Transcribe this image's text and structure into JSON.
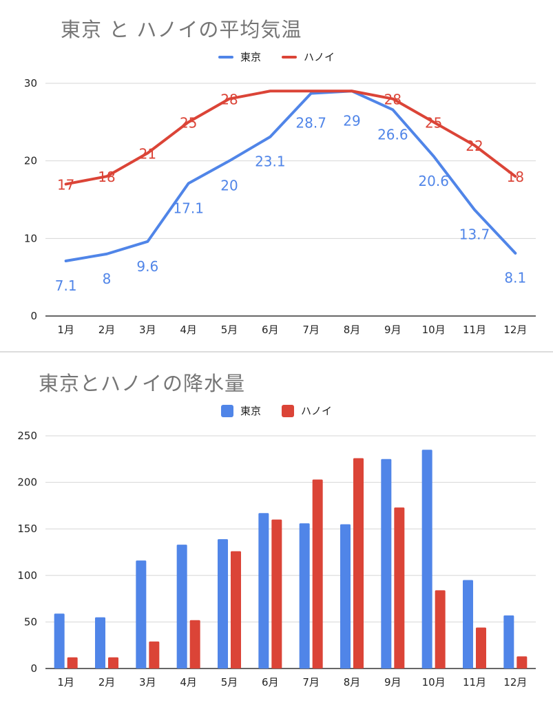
{
  "colors": {
    "tokyo": "#5085e8",
    "hanoi": "#db4437",
    "grid": "#d6d6d6",
    "axis": "#333333"
  },
  "chart_data": [
    {
      "type": "line",
      "title": "東京 と ハノイの平均気温",
      "categories": [
        "1月",
        "2月",
        "3月",
        "4月",
        "5月",
        "6月",
        "7月",
        "8月",
        "9月",
        "10月",
        "11月",
        "12月"
      ],
      "series": [
        {
          "name": "東京",
          "values": [
            7.1,
            8,
            9.6,
            17.1,
            20,
            23.1,
            28.7,
            29,
            26.6,
            20.6,
            13.7,
            8.1
          ],
          "labels": [
            "7.1",
            "8",
            "9.6",
            "17.1",
            "20",
            "23.1",
            "28.7",
            "29",
            "26.6",
            "20.6",
            "13.7",
            "8.1"
          ]
        },
        {
          "name": "ハノイ",
          "values": [
            17,
            18,
            21,
            25,
            28,
            29,
            29,
            29,
            28,
            25,
            22,
            18
          ],
          "labels": [
            "17",
            "18",
            "21",
            "25",
            "28",
            "",
            "",
            "",
            "28",
            "25",
            "22",
            "18"
          ]
        }
      ],
      "yticks": [
        "0",
        "10",
        "20",
        "30"
      ],
      "ylim": [
        0,
        30
      ],
      "grid": true,
      "legend": "top-center"
    },
    {
      "type": "bar",
      "title": "東京とハノイの降水量",
      "categories": [
        "1月",
        "2月",
        "3月",
        "4月",
        "5月",
        "6月",
        "7月",
        "8月",
        "9月",
        "10月",
        "11月",
        "12月"
      ],
      "series": [
        {
          "name": "東京",
          "values": [
            59,
            55,
            116,
            133,
            139,
            167,
            156,
            155,
            225,
            235,
            95,
            57
          ]
        },
        {
          "name": "ハノイ",
          "values": [
            12,
            12,
            29,
            52,
            126,
            160,
            203,
            226,
            173,
            84,
            44,
            13
          ]
        }
      ],
      "yticks": [
        "0",
        "50",
        "100",
        "150",
        "200",
        "250"
      ],
      "ylim": [
        0,
        250
      ],
      "grid": true,
      "legend": "top-center"
    }
  ]
}
